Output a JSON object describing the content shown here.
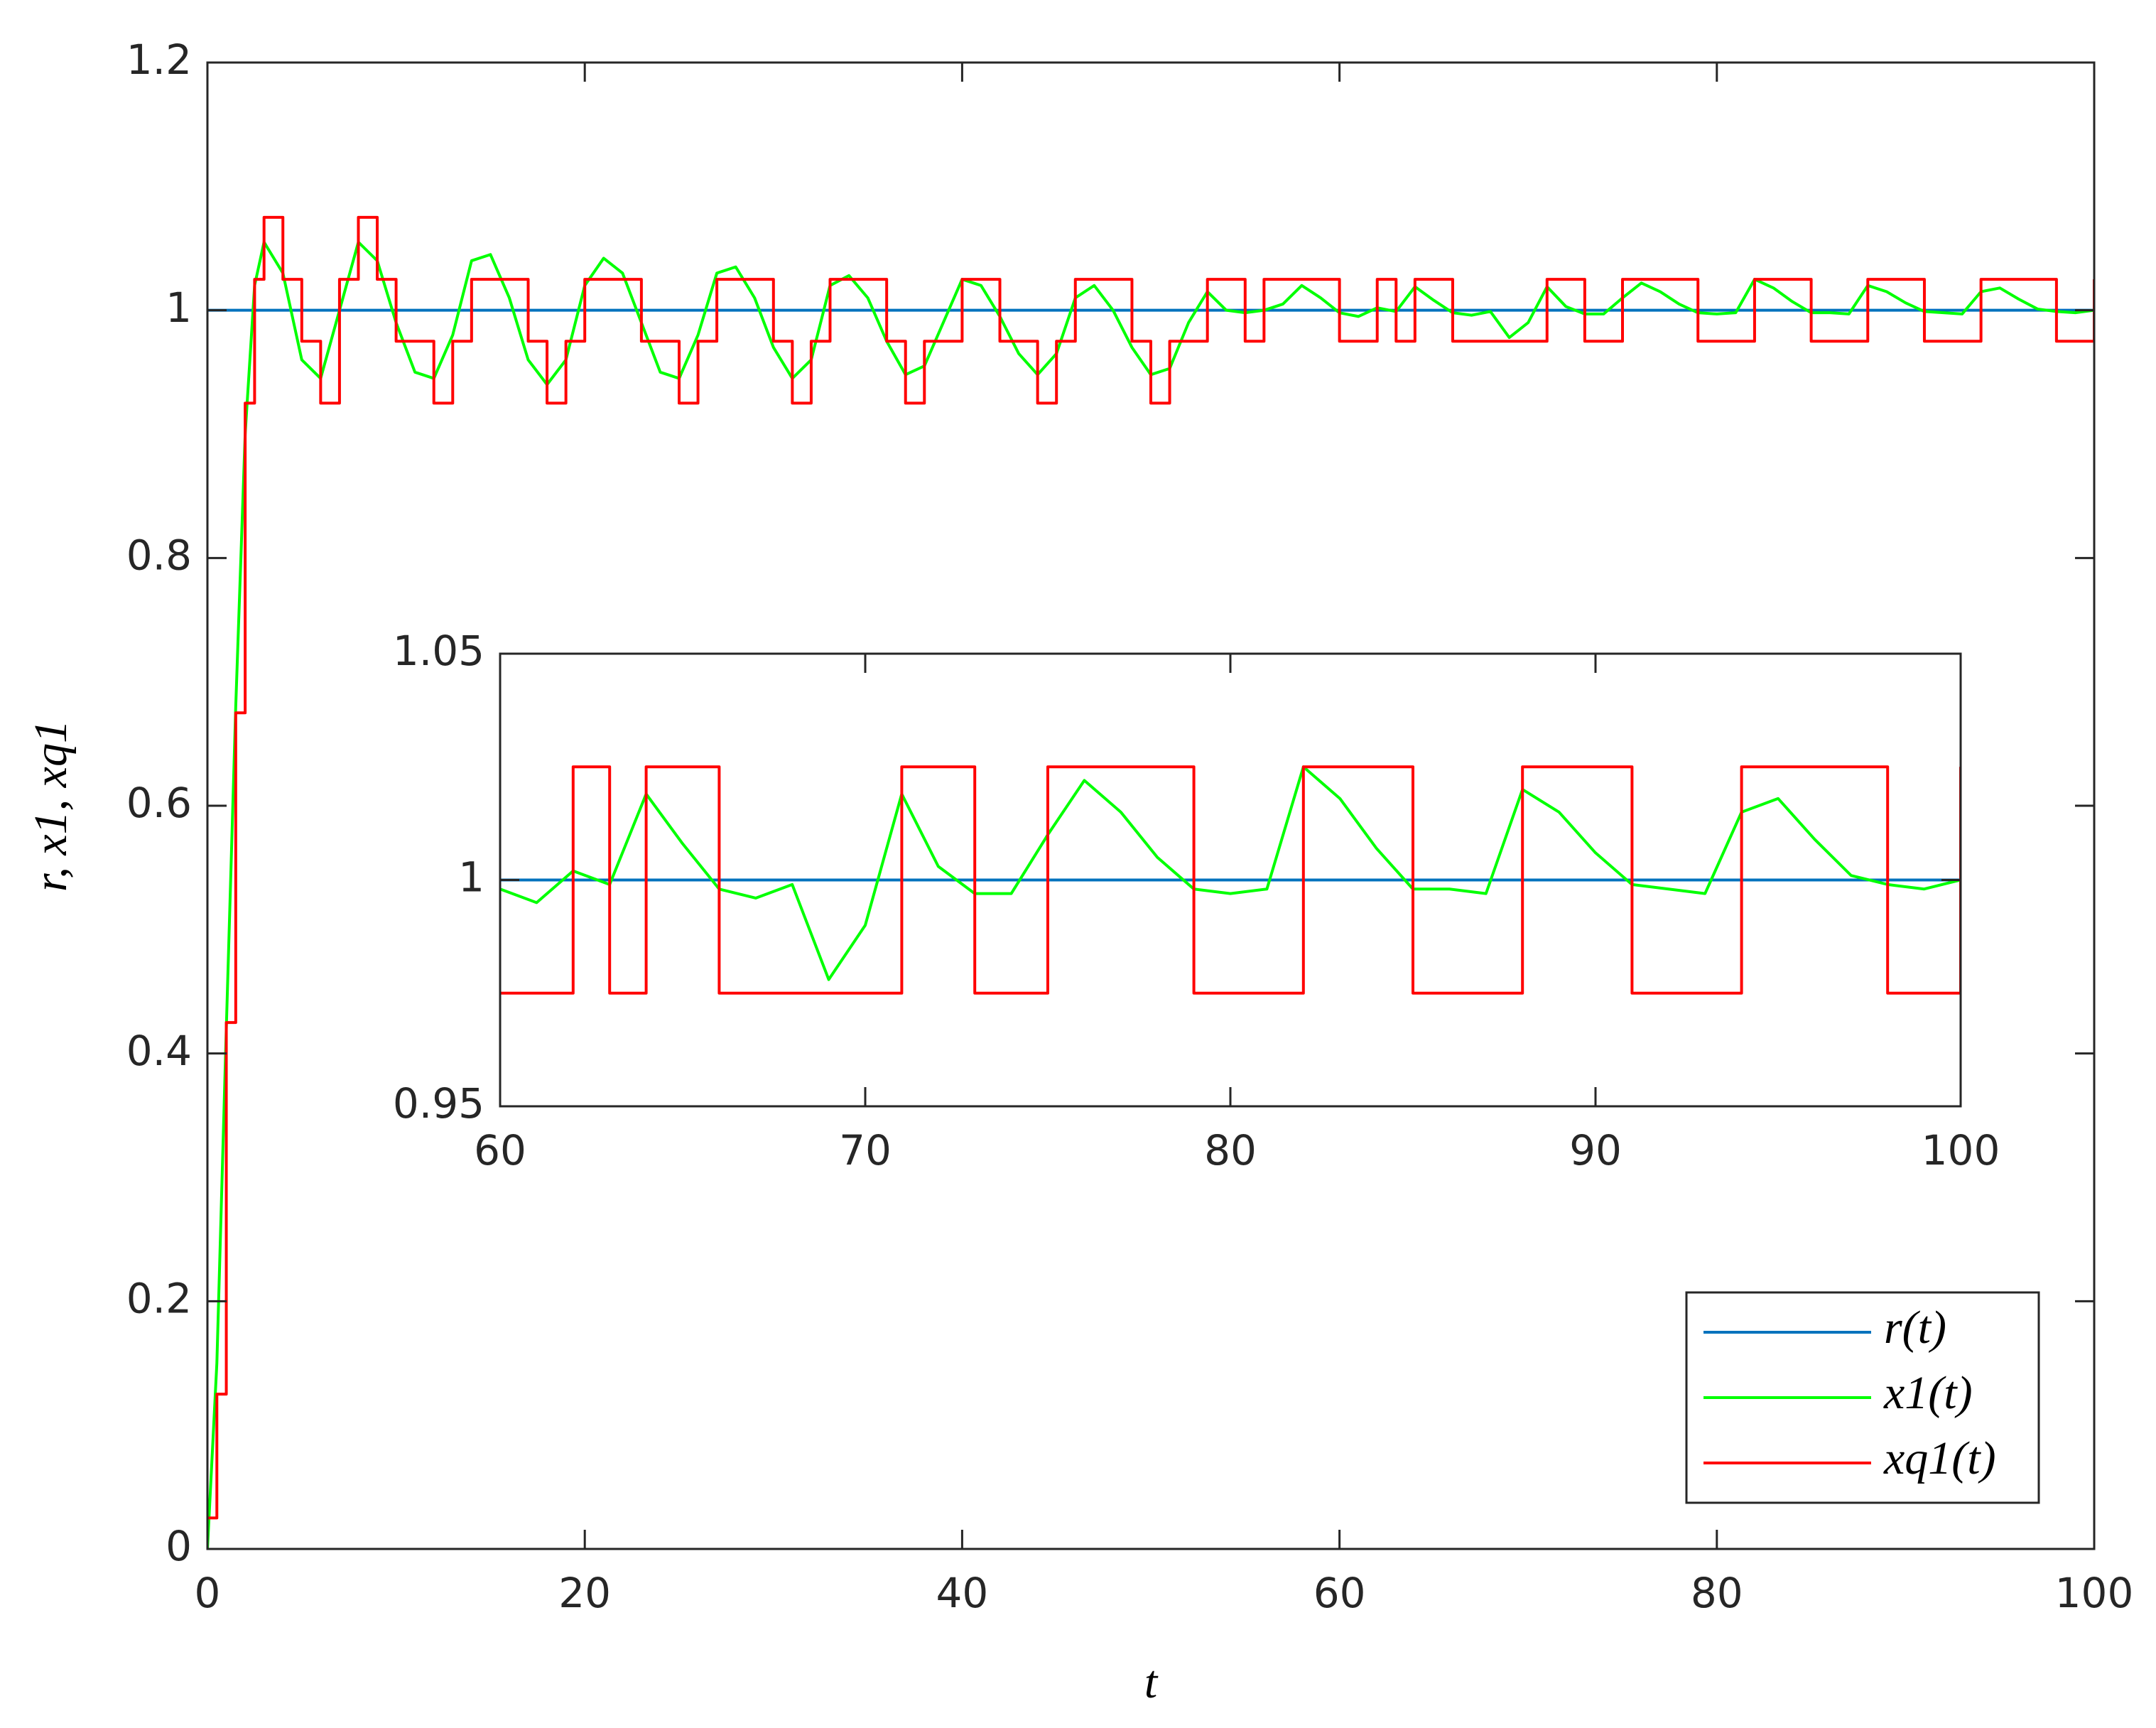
{
  "chart_data": [
    {
      "type": "line",
      "xlabel": "t",
      "ylabel": "r, x1, xq1",
      "x": [
        0,
        0.5,
        1,
        1.5,
        2,
        2.5,
        3,
        4,
        5,
        6,
        7,
        8,
        9,
        10,
        11,
        12,
        13,
        14,
        15,
        16,
        17,
        18,
        19,
        20,
        21,
        22,
        23,
        24,
        25,
        26,
        27,
        28,
        29,
        30,
        31,
        32,
        33,
        34,
        35,
        36,
        37,
        38,
        39,
        40,
        41,
        42,
        43,
        44,
        45,
        46,
        47,
        48,
        49,
        50,
        51,
        52,
        53,
        54,
        55,
        56,
        57,
        58,
        59,
        60,
        61,
        62,
        63,
        64,
        65,
        66,
        67,
        68,
        69,
        70,
        71,
        72,
        73,
        74,
        75,
        76,
        77,
        78,
        79,
        80,
        81,
        82,
        83,
        84,
        85,
        86,
        87,
        88,
        89,
        90,
        91,
        92,
        93,
        94,
        95,
        96,
        97,
        98,
        99,
        100
      ],
      "series": [
        {
          "name": "r(t)",
          "color": "#0072bd",
          "values": [
            1,
            1,
            1,
            1,
            1,
            1,
            1,
            1,
            1,
            1,
            1,
            1,
            1,
            1,
            1,
            1,
            1,
            1,
            1,
            1,
            1,
            1,
            1,
            1,
            1,
            1,
            1,
            1,
            1,
            1,
            1,
            1,
            1,
            1,
            1,
            1,
            1,
            1,
            1,
            1,
            1,
            1,
            1,
            1,
            1,
            1,
            1,
            1,
            1,
            1,
            1,
            1,
            1,
            1,
            1,
            1,
            1,
            1,
            1,
            1,
            1,
            1,
            1,
            1,
            1,
            1,
            1,
            1,
            1,
            1,
            1,
            1,
            1,
            1,
            1,
            1,
            1,
            1,
            1,
            1,
            1,
            1,
            1,
            1,
            1,
            1,
            1,
            1,
            1,
            1,
            1,
            1,
            1,
            1,
            1,
            1,
            1,
            1,
            1,
            1,
            1,
            1,
            1,
            1
          ]
        },
        {
          "name": "x1(t)",
          "color": "#00ff00",
          "values": [
            0,
            0.15,
            0.42,
            0.68,
            0.9,
            1.02,
            1.055,
            1.03,
            0.96,
            0.945,
            1.0,
            1.055,
            1.04,
            0.99,
            0.95,
            0.945,
            0.98,
            1.04,
            1.045,
            1.01,
            0.96,
            0.94,
            0.96,
            1.02,
            1.042,
            1.03,
            0.99,
            0.95,
            0.945,
            0.98,
            1.03,
            1.035,
            1.01,
            0.97,
            0.945,
            0.96,
            1.02,
            1.028,
            1.01,
            0.975,
            0.948,
            0.955,
            0.99,
            1.025,
            1.02,
            0.995,
            0.965,
            0.948,
            0.965,
            1.01,
            1.02,
            1.0,
            0.97,
            0.948,
            0.953,
            0.99,
            1.015,
            1.0,
            0.998,
            1.0,
            1.005,
            1.02,
            1.01,
            0.998,
            0.995,
            1.002,
            0.999,
            1.019,
            1.008,
            0.998,
            0.996,
            0.999,
            0.978,
            0.99,
            1.019,
            1.003,
            0.997,
            0.997,
            1.01,
            1.022,
            1.015,
            1.005,
            0.998,
            0.997,
            0.998,
            1.025,
            1.018,
            1.007,
            0.998,
            0.998,
            0.997,
            1.02,
            1.015,
            1.006,
            0.999,
            0.998,
            0.997,
            1.015,
            1.018,
            1.009,
            1.001,
            0.999,
            0.998,
            1.0
          ]
        },
        {
          "name": "xq1(t)",
          "color": "#ff0000",
          "drawstyle": "steps-post",
          "values": [
            0.025,
            0.125,
            0.425,
            0.675,
            0.925,
            1.025,
            1.075,
            1.025,
            0.975,
            0.925,
            1.025,
            1.075,
            1.025,
            0.975,
            0.975,
            0.925,
            0.975,
            1.025,
            1.025,
            1.025,
            0.975,
            0.925,
            0.975,
            1.025,
            1.025,
            1.025,
            0.975,
            0.975,
            0.925,
            0.975,
            1.025,
            1.025,
            1.025,
            0.975,
            0.925,
            0.975,
            1.025,
            1.025,
            1.025,
            0.975,
            0.925,
            0.975,
            0.975,
            1.025,
            1.025,
            0.975,
            0.975,
            0.925,
            0.975,
            1.025,
            1.025,
            1.025,
            0.975,
            0.925,
            0.975,
            0.975,
            1.025,
            1.025,
            0.975,
            1.025,
            1.025,
            1.025,
            1.025,
            0.975,
            0.975,
            1.025,
            0.975,
            1.025,
            1.025,
            0.975,
            0.975,
            0.975,
            0.975,
            0.975,
            1.025,
            1.025,
            0.975,
            0.975,
            1.025,
            1.025,
            1.025,
            1.025,
            0.975,
            0.975,
            0.975,
            1.025,
            1.025,
            1.025,
            0.975,
            0.975,
            0.975,
            1.025,
            1.025,
            1.025,
            0.975,
            0.975,
            0.975,
            1.025,
            1.025,
            1.025,
            1.025,
            0.975,
            0.975,
            1.025
          ]
        }
      ],
      "xlim": [
        0,
        100
      ],
      "ylim": [
        0,
        1.2
      ],
      "xticks": [
        0,
        20,
        40,
        60,
        80,
        100
      ],
      "yticks": [
        0,
        0.2,
        0.4,
        0.6,
        0.8,
        1,
        1.2
      ],
      "legend": "lower right"
    },
    {
      "type": "line",
      "x": [
        60,
        61,
        62,
        63,
        64,
        65,
        66,
        67,
        68,
        69,
        70,
        71,
        72,
        73,
        74,
        75,
        76,
        77,
        78,
        79,
        80,
        81,
        82,
        83,
        84,
        85,
        86,
        87,
        88,
        89,
        90,
        91,
        92,
        93,
        94,
        95,
        96,
        97,
        98,
        99,
        100
      ],
      "series": [
        {
          "color": "#0072bd",
          "values": [
            1,
            1,
            1,
            1,
            1,
            1,
            1,
            1,
            1,
            1,
            1,
            1,
            1,
            1,
            1,
            1,
            1,
            1,
            1,
            1,
            1,
            1,
            1,
            1,
            1,
            1,
            1,
            1,
            1,
            1,
            1,
            1,
            1,
            1,
            1,
            1,
            1,
            1,
            1,
            1,
            1
          ]
        },
        {
          "color": "#00ff00",
          "values": [
            0.998,
            0.995,
            1.002,
            0.999,
            1.019,
            1.008,
            0.998,
            0.996,
            0.999,
            0.978,
            0.99,
            1.019,
            1.003,
            0.997,
            0.997,
            1.01,
            1.022,
            1.015,
            1.005,
            0.998,
            0.997,
            0.998,
            1.025,
            1.018,
            1.007,
            0.998,
            0.998,
            0.997,
            1.02,
            1.015,
            1.006,
            0.999,
            0.998,
            0.997,
            1.015,
            1.018,
            1.009,
            1.001,
            0.999,
            0.998,
            1.0
          ]
        },
        {
          "color": "#ff0000",
          "drawstyle": "steps-post",
          "values": [
            0.975,
            0.975,
            1.025,
            0.975,
            1.025,
            1.025,
            0.975,
            0.975,
            0.975,
            0.975,
            0.975,
            1.025,
            1.025,
            0.975,
            0.975,
            1.025,
            1.025,
            1.025,
            1.025,
            0.975,
            0.975,
            0.975,
            1.025,
            1.025,
            1.025,
            0.975,
            0.975,
            0.975,
            1.025,
            1.025,
            1.025,
            0.975,
            0.975,
            0.975,
            1.025,
            1.025,
            1.025,
            1.025,
            0.975,
            0.975,
            1.025
          ]
        }
      ],
      "xlim": [
        60,
        100
      ],
      "ylim": [
        0.95,
        1.05
      ],
      "xticks": [
        60,
        70,
        80,
        90,
        100
      ],
      "yticks": [
        0.95,
        1,
        1.05
      ]
    }
  ]
}
